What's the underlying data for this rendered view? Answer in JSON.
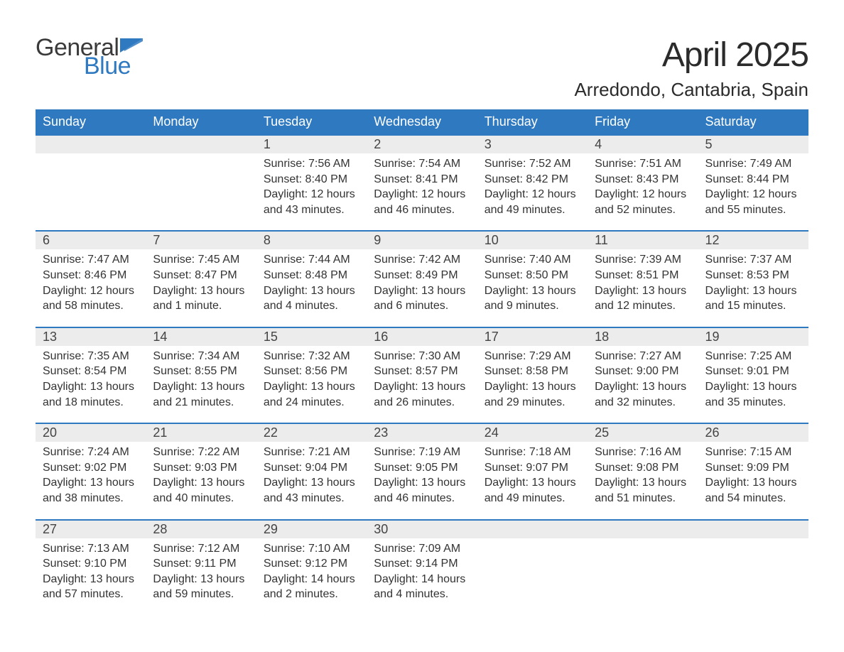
{
  "brand": {
    "general": "General",
    "blue": "Blue",
    "logo_color_dark": "#3a3a3a",
    "logo_color_blue": "#2e79c0"
  },
  "title": {
    "month_year": "April 2025",
    "location": "Arredondo, Cantabria, Spain",
    "title_fontsize": 48,
    "location_fontsize": 26
  },
  "styling": {
    "header_bg": "#2e79c0",
    "header_text": "#ffffff",
    "daynum_bg": "#ececec",
    "daynum_border": "#2e79c0",
    "body_text": "#333333",
    "page_bg": "#ffffff",
    "header_fontsize": 18,
    "daynum_fontsize": 18,
    "cell_fontsize": 16
  },
  "weekdays": [
    "Sunday",
    "Monday",
    "Tuesday",
    "Wednesday",
    "Thursday",
    "Friday",
    "Saturday"
  ],
  "weeks": [
    [
      {
        "day": "",
        "sunrise": "",
        "sunset": "",
        "daylight1": "",
        "daylight2": ""
      },
      {
        "day": "",
        "sunrise": "",
        "sunset": "",
        "daylight1": "",
        "daylight2": ""
      },
      {
        "day": "1",
        "sunrise": "Sunrise: 7:56 AM",
        "sunset": "Sunset: 8:40 PM",
        "daylight1": "Daylight: 12 hours",
        "daylight2": "and 43 minutes."
      },
      {
        "day": "2",
        "sunrise": "Sunrise: 7:54 AM",
        "sunset": "Sunset: 8:41 PM",
        "daylight1": "Daylight: 12 hours",
        "daylight2": "and 46 minutes."
      },
      {
        "day": "3",
        "sunrise": "Sunrise: 7:52 AM",
        "sunset": "Sunset: 8:42 PM",
        "daylight1": "Daylight: 12 hours",
        "daylight2": "and 49 minutes."
      },
      {
        "day": "4",
        "sunrise": "Sunrise: 7:51 AM",
        "sunset": "Sunset: 8:43 PM",
        "daylight1": "Daylight: 12 hours",
        "daylight2": "and 52 minutes."
      },
      {
        "day": "5",
        "sunrise": "Sunrise: 7:49 AM",
        "sunset": "Sunset: 8:44 PM",
        "daylight1": "Daylight: 12 hours",
        "daylight2": "and 55 minutes."
      }
    ],
    [
      {
        "day": "6",
        "sunrise": "Sunrise: 7:47 AM",
        "sunset": "Sunset: 8:46 PM",
        "daylight1": "Daylight: 12 hours",
        "daylight2": "and 58 minutes."
      },
      {
        "day": "7",
        "sunrise": "Sunrise: 7:45 AM",
        "sunset": "Sunset: 8:47 PM",
        "daylight1": "Daylight: 13 hours",
        "daylight2": "and 1 minute."
      },
      {
        "day": "8",
        "sunrise": "Sunrise: 7:44 AM",
        "sunset": "Sunset: 8:48 PM",
        "daylight1": "Daylight: 13 hours",
        "daylight2": "and 4 minutes."
      },
      {
        "day": "9",
        "sunrise": "Sunrise: 7:42 AM",
        "sunset": "Sunset: 8:49 PM",
        "daylight1": "Daylight: 13 hours",
        "daylight2": "and 6 minutes."
      },
      {
        "day": "10",
        "sunrise": "Sunrise: 7:40 AM",
        "sunset": "Sunset: 8:50 PM",
        "daylight1": "Daylight: 13 hours",
        "daylight2": "and 9 minutes."
      },
      {
        "day": "11",
        "sunrise": "Sunrise: 7:39 AM",
        "sunset": "Sunset: 8:51 PM",
        "daylight1": "Daylight: 13 hours",
        "daylight2": "and 12 minutes."
      },
      {
        "day": "12",
        "sunrise": "Sunrise: 7:37 AM",
        "sunset": "Sunset: 8:53 PM",
        "daylight1": "Daylight: 13 hours",
        "daylight2": "and 15 minutes."
      }
    ],
    [
      {
        "day": "13",
        "sunrise": "Sunrise: 7:35 AM",
        "sunset": "Sunset: 8:54 PM",
        "daylight1": "Daylight: 13 hours",
        "daylight2": "and 18 minutes."
      },
      {
        "day": "14",
        "sunrise": "Sunrise: 7:34 AM",
        "sunset": "Sunset: 8:55 PM",
        "daylight1": "Daylight: 13 hours",
        "daylight2": "and 21 minutes."
      },
      {
        "day": "15",
        "sunrise": "Sunrise: 7:32 AM",
        "sunset": "Sunset: 8:56 PM",
        "daylight1": "Daylight: 13 hours",
        "daylight2": "and 24 minutes."
      },
      {
        "day": "16",
        "sunrise": "Sunrise: 7:30 AM",
        "sunset": "Sunset: 8:57 PM",
        "daylight1": "Daylight: 13 hours",
        "daylight2": "and 26 minutes."
      },
      {
        "day": "17",
        "sunrise": "Sunrise: 7:29 AM",
        "sunset": "Sunset: 8:58 PM",
        "daylight1": "Daylight: 13 hours",
        "daylight2": "and 29 minutes."
      },
      {
        "day": "18",
        "sunrise": "Sunrise: 7:27 AM",
        "sunset": "Sunset: 9:00 PM",
        "daylight1": "Daylight: 13 hours",
        "daylight2": "and 32 minutes."
      },
      {
        "day": "19",
        "sunrise": "Sunrise: 7:25 AM",
        "sunset": "Sunset: 9:01 PM",
        "daylight1": "Daylight: 13 hours",
        "daylight2": "and 35 minutes."
      }
    ],
    [
      {
        "day": "20",
        "sunrise": "Sunrise: 7:24 AM",
        "sunset": "Sunset: 9:02 PM",
        "daylight1": "Daylight: 13 hours",
        "daylight2": "and 38 minutes."
      },
      {
        "day": "21",
        "sunrise": "Sunrise: 7:22 AM",
        "sunset": "Sunset: 9:03 PM",
        "daylight1": "Daylight: 13 hours",
        "daylight2": "and 40 minutes."
      },
      {
        "day": "22",
        "sunrise": "Sunrise: 7:21 AM",
        "sunset": "Sunset: 9:04 PM",
        "daylight1": "Daylight: 13 hours",
        "daylight2": "and 43 minutes."
      },
      {
        "day": "23",
        "sunrise": "Sunrise: 7:19 AM",
        "sunset": "Sunset: 9:05 PM",
        "daylight1": "Daylight: 13 hours",
        "daylight2": "and 46 minutes."
      },
      {
        "day": "24",
        "sunrise": "Sunrise: 7:18 AM",
        "sunset": "Sunset: 9:07 PM",
        "daylight1": "Daylight: 13 hours",
        "daylight2": "and 49 minutes."
      },
      {
        "day": "25",
        "sunrise": "Sunrise: 7:16 AM",
        "sunset": "Sunset: 9:08 PM",
        "daylight1": "Daylight: 13 hours",
        "daylight2": "and 51 minutes."
      },
      {
        "day": "26",
        "sunrise": "Sunrise: 7:15 AM",
        "sunset": "Sunset: 9:09 PM",
        "daylight1": "Daylight: 13 hours",
        "daylight2": "and 54 minutes."
      }
    ],
    [
      {
        "day": "27",
        "sunrise": "Sunrise: 7:13 AM",
        "sunset": "Sunset: 9:10 PM",
        "daylight1": "Daylight: 13 hours",
        "daylight2": "and 57 minutes."
      },
      {
        "day": "28",
        "sunrise": "Sunrise: 7:12 AM",
        "sunset": "Sunset: 9:11 PM",
        "daylight1": "Daylight: 13 hours",
        "daylight2": "and 59 minutes."
      },
      {
        "day": "29",
        "sunrise": "Sunrise: 7:10 AM",
        "sunset": "Sunset: 9:12 PM",
        "daylight1": "Daylight: 14 hours",
        "daylight2": "and 2 minutes."
      },
      {
        "day": "30",
        "sunrise": "Sunrise: 7:09 AM",
        "sunset": "Sunset: 9:14 PM",
        "daylight1": "Daylight: 14 hours",
        "daylight2": "and 4 minutes."
      },
      {
        "day": "",
        "sunrise": "",
        "sunset": "",
        "daylight1": "",
        "daylight2": ""
      },
      {
        "day": "",
        "sunrise": "",
        "sunset": "",
        "daylight1": "",
        "daylight2": ""
      },
      {
        "day": "",
        "sunrise": "",
        "sunset": "",
        "daylight1": "",
        "daylight2": ""
      }
    ]
  ]
}
